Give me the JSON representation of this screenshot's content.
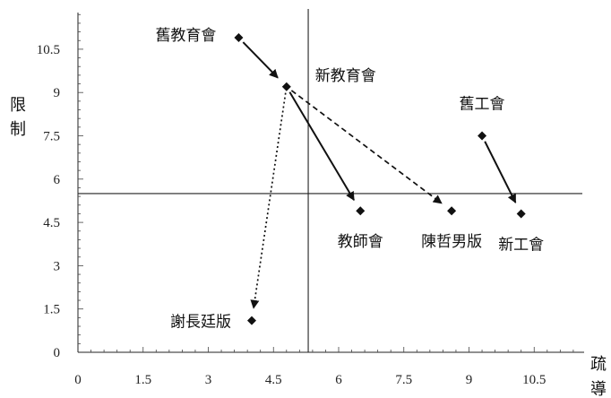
{
  "chart_data": {
    "type": "scatter",
    "xlabel": "疏導",
    "ylabel": "限制",
    "xlim": [
      0,
      12
    ],
    "ylim": [
      0,
      12
    ],
    "xticks": [
      "0",
      "1.5",
      "3",
      "4.5",
      "6",
      "7.5",
      "9",
      "10.5"
    ],
    "yticks": [
      "0",
      "1.5",
      "3",
      "4.5",
      "6",
      "7.5",
      "9",
      "10.5"
    ],
    "reference_lines": {
      "x": 5.3,
      "y": 5.5
    },
    "points": [
      {
        "label": "舊教育會",
        "x": 3.7,
        "y": 10.9
      },
      {
        "label": "新教育會",
        "x": 4.8,
        "y": 9.2
      },
      {
        "label": "教師會",
        "x": 6.5,
        "y": 4.9
      },
      {
        "label": "陳哲男版",
        "x": 8.6,
        "y": 4.9
      },
      {
        "label": "謝長廷版",
        "x": 4.0,
        "y": 1.1
      },
      {
        "label": "舊工會",
        "x": 9.3,
        "y": 7.5
      },
      {
        "label": "新工會",
        "x": 10.2,
        "y": 4.8
      }
    ],
    "arrows": [
      {
        "from": "舊教育會",
        "to": "新教育會",
        "style": "solid"
      },
      {
        "from": "新教育會",
        "to": "教師會",
        "style": "solid"
      },
      {
        "from": "新教育會",
        "to": "陳哲男版",
        "style": "dashed"
      },
      {
        "from": "新教育會",
        "to": "謝長廷版",
        "style": "dotted"
      },
      {
        "from": "舊工會",
        "to": "新工會",
        "style": "solid"
      }
    ]
  }
}
